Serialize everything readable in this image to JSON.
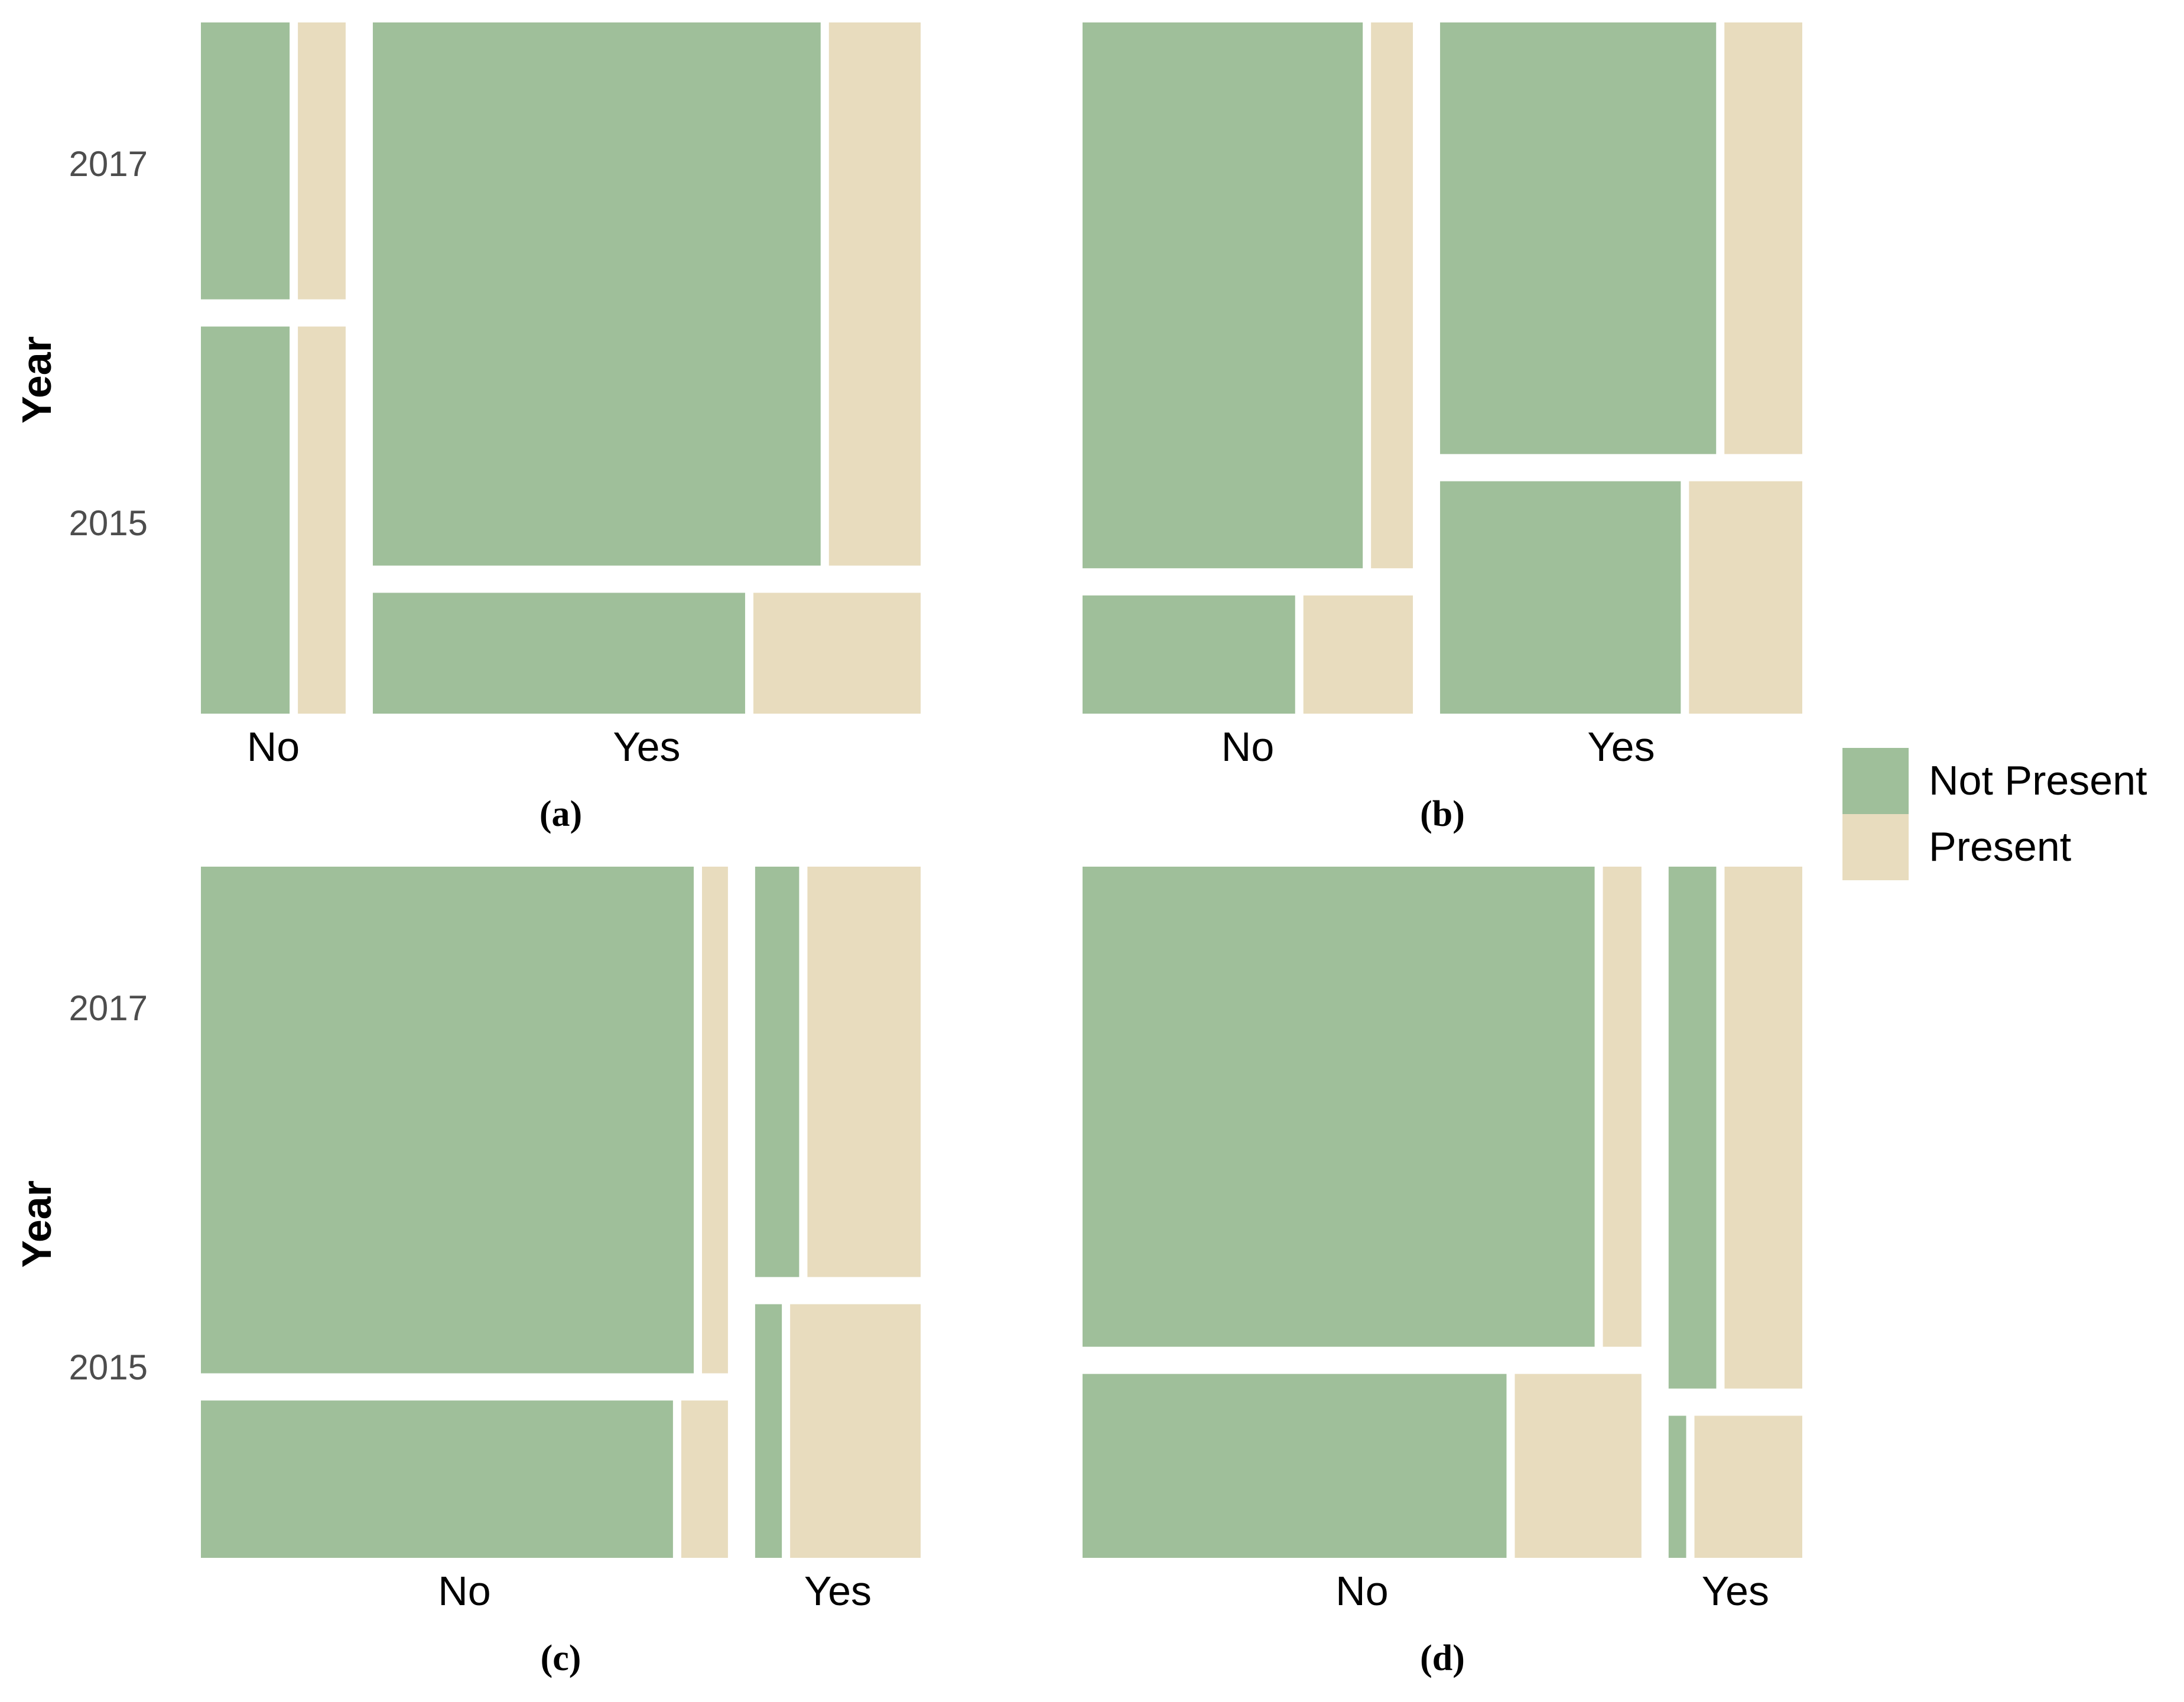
{
  "colors": {
    "not_present": "#9fbf9a",
    "present": "#e8dcbe"
  },
  "legend": {
    "items": [
      "Not Present",
      "Present"
    ]
  },
  "chart_data": [
    {
      "type": "mosaic",
      "panel_label": "(a)",
      "ylabel": "Year",
      "year_ticks": [
        "2017",
        "2015"
      ],
      "categories": [
        "No",
        "Yes"
      ],
      "category_share": [
        0.209,
        0.791
      ],
      "years": [
        "2017",
        "2015"
      ],
      "year_share": {
        "No": [
          0.417,
          0.583
        ],
        "Yes": [
          0.818,
          0.182
        ]
      },
      "present_share": {
        "No": {
          "2017": 0.35,
          "2015": 0.35
        },
        "Yes": {
          "2017": 0.17,
          "2015": 0.31
        }
      }
    },
    {
      "type": "mosaic",
      "panel_label": "(b)",
      "ylabel": "",
      "year_ticks": [],
      "categories": [
        "No",
        "Yes"
      ],
      "category_share": [
        0.477,
        0.523
      ],
      "years": [
        "2017",
        "2015"
      ],
      "year_share": {
        "No": [
          0.822,
          0.178
        ],
        "Yes": [
          0.65,
          0.35
        ]
      },
      "present_share": {
        "No": {
          "2017": 0.13,
          "2015": 0.34
        },
        "Yes": {
          "2017": 0.22,
          "2015": 0.32
        }
      }
    },
    {
      "type": "mosaic",
      "panel_label": "(c)",
      "ylabel": "Year",
      "year_ticks": [
        "2017",
        "2015"
      ],
      "categories": [
        "No",
        "Yes"
      ],
      "category_share": [
        0.761,
        0.239
      ],
      "years": [
        "2017",
        "2015"
      ],
      "year_share": {
        "No": [
          0.763,
          0.237
        ],
        "Yes": [
          0.618,
          0.382
        ]
      },
      "present_share": {
        "No": {
          "2017": 0.05,
          "2015": 0.09
        },
        "Yes": {
          "2017": 0.72,
          "2015": 0.83
        }
      }
    },
    {
      "type": "mosaic",
      "panel_label": "(d)",
      "ylabel": "",
      "year_ticks": [],
      "categories": [
        "No",
        "Yes"
      ],
      "category_share": [
        0.807,
        0.193
      ],
      "years": [
        "2017",
        "2015"
      ],
      "year_share": {
        "No": [
          0.723,
          0.277
        ],
        "Yes": [
          0.786,
          0.214
        ]
      },
      "present_share": {
        "No": {
          "2017": 0.07,
          "2015": 0.23
        },
        "Yes": {
          "2017": 0.62,
          "2015": 0.86
        }
      }
    }
  ]
}
